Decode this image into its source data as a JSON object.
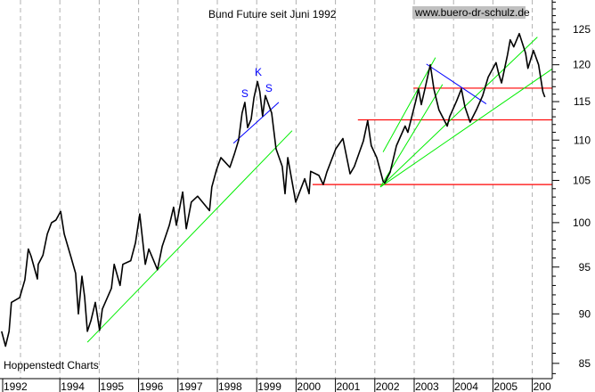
{
  "chart_data": {
    "type": "line",
    "title": "Bund Future seit Juni 1992",
    "watermark": "www.buero-dr-schulz.de",
    "source": "Hoppenstedt Charts",
    "y_scale": "log",
    "ylim": [
      83.5,
      132
    ],
    "y_ticks": [
      85,
      90,
      95,
      100,
      105,
      110,
      115,
      120,
      125
    ],
    "x_tick_labels": [
      {
        "year": 1992.55,
        "label": "1992"
      },
      {
        "year": 1994,
        "label": "1994"
      },
      {
        "year": 1995,
        "label": "1995"
      },
      {
        "year": 1996,
        "label": "1996"
      },
      {
        "year": 1997,
        "label": "1997"
      },
      {
        "year": 1998,
        "label": "1998"
      },
      {
        "year": 1999,
        "label": "1999"
      },
      {
        "year": 2000,
        "label": "2000"
      },
      {
        "year": 2001,
        "label": "2001"
      },
      {
        "year": 2002,
        "label": "2002"
      },
      {
        "year": 2003,
        "label": "2003"
      },
      {
        "year": 2004,
        "label": "2004"
      },
      {
        "year": 2005,
        "label": "2005"
      },
      {
        "year": 2006,
        "label": "200"
      }
    ],
    "grid_years": [
      1993,
      1994,
      1995,
      1996,
      1997,
      1998,
      1999,
      2000,
      2001,
      2002,
      2003,
      2004,
      2005,
      2006
    ],
    "grid": "vertical dashed",
    "colors": {
      "price": "#000000",
      "support": "#00ee00",
      "neckline": "#0000ff",
      "horizontal": "#ff0000",
      "grid": "#b0b0b0",
      "watermark_bg": "#c0c0c0"
    },
    "series": [
      {
        "points": [
          [
            1992.52,
            88.2
          ],
          [
            1992.62,
            86.7
          ],
          [
            1992.71,
            88.2
          ],
          [
            1992.77,
            91.2
          ],
          [
            1992.98,
            91.7
          ],
          [
            1993.11,
            93.6
          ],
          [
            1993.2,
            97.0
          ],
          [
            1993.27,
            96.2
          ],
          [
            1993.43,
            93.7
          ],
          [
            1993.45,
            95.3
          ],
          [
            1993.57,
            96.3
          ],
          [
            1993.68,
            98.7
          ],
          [
            1993.79,
            100.0
          ],
          [
            1993.9,
            100.3
          ],
          [
            1994.02,
            101.3
          ],
          [
            1994.11,
            98.7
          ],
          [
            1994.29,
            96.0
          ],
          [
            1994.4,
            94.3
          ],
          [
            1994.47,
            90.0
          ],
          [
            1994.56,
            94.0
          ],
          [
            1994.63,
            91.8
          ],
          [
            1994.7,
            88.2
          ],
          [
            1994.79,
            89.3
          ],
          [
            1994.9,
            91.2
          ],
          [
            1995.01,
            88.3
          ],
          [
            1995.08,
            90.5
          ],
          [
            1995.31,
            92.7
          ],
          [
            1995.38,
            95.3
          ],
          [
            1995.53,
            93.0
          ],
          [
            1995.6,
            95.3
          ],
          [
            1995.8,
            95.7
          ],
          [
            1995.92,
            97.7
          ],
          [
            1996.03,
            101.0
          ],
          [
            1996.17,
            95.3
          ],
          [
            1996.26,
            97.0
          ],
          [
            1996.48,
            94.7
          ],
          [
            1996.6,
            97.3
          ],
          [
            1996.78,
            99.7
          ],
          [
            1996.89,
            101.8
          ],
          [
            1996.96,
            99.7
          ],
          [
            1997.12,
            103.6
          ],
          [
            1997.21,
            99.3
          ],
          [
            1997.34,
            102.4
          ],
          [
            1997.5,
            103.1
          ],
          [
            1997.8,
            101.4
          ],
          [
            1997.86,
            104.2
          ],
          [
            1997.98,
            106.3
          ],
          [
            1998.09,
            107.8
          ],
          [
            1998.32,
            106.6
          ],
          [
            1998.43,
            108.2
          ],
          [
            1998.54,
            110.0
          ],
          [
            1998.63,
            113.5
          ],
          [
            1998.7,
            114.9
          ],
          [
            1998.77,
            111.6
          ],
          [
            1998.86,
            112.7
          ],
          [
            1998.93,
            115.5
          ],
          [
            1999.02,
            117.7
          ],
          [
            1999.08,
            116.3
          ],
          [
            1999.15,
            113.1
          ],
          [
            1999.22,
            115.8
          ],
          [
            1999.38,
            113.5
          ],
          [
            1999.49,
            108.9
          ],
          [
            1999.65,
            106.7
          ],
          [
            1999.72,
            103.4
          ],
          [
            1999.79,
            107.8
          ],
          [
            1999.99,
            102.4
          ],
          [
            2000.22,
            105.2
          ],
          [
            2000.33,
            103.4
          ],
          [
            2000.37,
            106.1
          ],
          [
            2000.58,
            105.6
          ],
          [
            2000.69,
            104.5
          ],
          [
            2000.78,
            106.0
          ],
          [
            2001.01,
            108.9
          ],
          [
            2001.19,
            110.2
          ],
          [
            2001.37,
            105.8
          ],
          [
            2001.48,
            106.7
          ],
          [
            2001.71,
            109.9
          ],
          [
            2001.82,
            112.5
          ],
          [
            2001.91,
            109.3
          ],
          [
            2002.05,
            107.8
          ],
          [
            2002.21,
            104.9
          ],
          [
            2002.25,
            104.7
          ],
          [
            2002.39,
            106.0
          ],
          [
            2002.55,
            109.3
          ],
          [
            2002.77,
            111.8
          ],
          [
            2002.84,
            111.0
          ],
          [
            2003.04,
            115.1
          ],
          [
            2003.11,
            116.7
          ],
          [
            2003.18,
            114.6
          ],
          [
            2003.29,
            117.1
          ],
          [
            2003.41,
            120.0
          ],
          [
            2003.5,
            116.7
          ],
          [
            2003.63,
            113.9
          ],
          [
            2003.84,
            111.8
          ],
          [
            2003.9,
            113.0
          ],
          [
            2004.08,
            115.1
          ],
          [
            2004.2,
            116.7
          ],
          [
            2004.29,
            114.3
          ],
          [
            2004.42,
            112.3
          ],
          [
            2004.58,
            113.9
          ],
          [
            2004.74,
            115.8
          ],
          [
            2004.88,
            118.3
          ],
          [
            2005.08,
            120.3
          ],
          [
            2005.15,
            118.7
          ],
          [
            2005.22,
            117.5
          ],
          [
            2005.37,
            121.4
          ],
          [
            2005.44,
            123.5
          ],
          [
            2005.53,
            122.5
          ],
          [
            2005.67,
            124.4
          ],
          [
            2005.83,
            121.6
          ],
          [
            2005.89,
            119.5
          ],
          [
            2006.03,
            122.0
          ],
          [
            2006.16,
            120.0
          ],
          [
            2006.27,
            116.3
          ],
          [
            2006.32,
            115.6
          ]
        ]
      }
    ],
    "trendlines": [
      {
        "kind": "support",
        "from": [
          1994.7,
          87.1
        ],
        "to": [
          1999.9,
          111.2
        ]
      },
      {
        "kind": "neckline",
        "from": [
          1998.41,
          109.6
        ],
        "to": [
          1999.56,
          114.9
        ]
      },
      {
        "kind": "support",
        "from": [
          2002.21,
          108.5
        ],
        "to": [
          2003.54,
          121.0
        ]
      },
      {
        "kind": "support",
        "from": [
          2002.14,
          104.2
        ],
        "to": [
          2003.72,
          117.3
        ]
      },
      {
        "kind": "support",
        "from": [
          2002.21,
          104.5
        ],
        "to": [
          2006.13,
          123.9
        ]
      },
      {
        "kind": "support",
        "from": [
          2002.14,
          104.2
        ],
        "to": [
          2006.5,
          119.4
        ]
      },
      {
        "kind": "neckline",
        "from": [
          2003.31,
          120.1
        ],
        "to": [
          2004.83,
          114.7
        ]
      }
    ],
    "horizontal_lines": [
      {
        "from_year": 2002.98,
        "price": 116.8
      },
      {
        "from_year": 2001.57,
        "price": 112.6
      },
      {
        "from_year": 2000.42,
        "price": 104.5
      }
    ],
    "annotations": [
      {
        "text": "S",
        "at": [
          1998.7,
          115.6
        ]
      },
      {
        "text": "K",
        "at": [
          1999.04,
          118.5
        ]
      },
      {
        "text": "S",
        "at": [
          1999.31,
          116.3
        ]
      }
    ]
  }
}
